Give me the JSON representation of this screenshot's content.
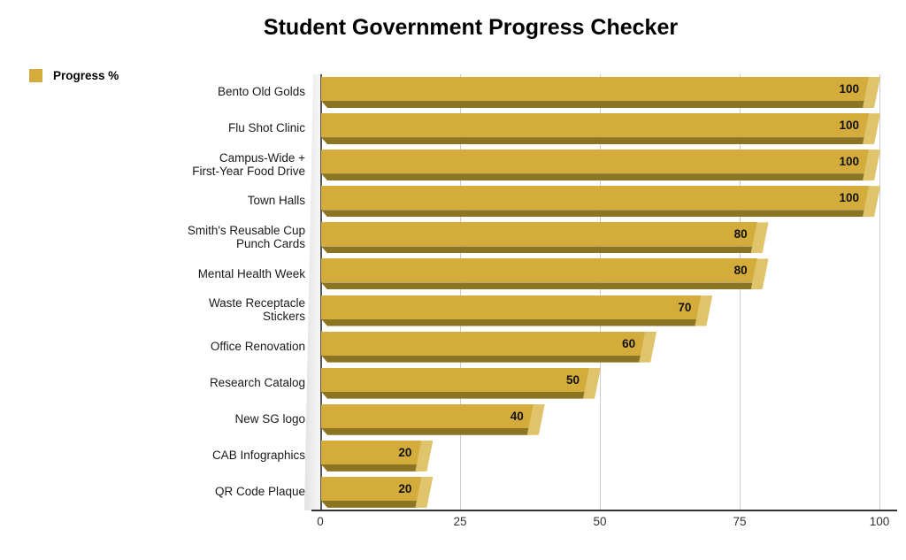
{
  "chart_data": {
    "type": "bar",
    "orientation": "horizontal",
    "title": "Student Government Progress Checker",
    "legend": "Progress %",
    "legend_position": "top-left",
    "categories": [
      "Bento Old Golds",
      "Flu Shot Clinic",
      "Campus-Wide +\nFirst-Year Food Drive",
      "Town Halls",
      "Smith's Reusable Cup\nPunch Cards",
      "Mental Health Week",
      "Waste Receptacle\nStickers",
      "Office Renovation",
      "Research Catalog",
      "New SG logo",
      "CAB Infographics",
      "QR Code Plaque"
    ],
    "values": [
      100,
      100,
      100,
      100,
      80,
      80,
      70,
      60,
      50,
      40,
      20,
      20
    ],
    "xlabel": "",
    "ylabel": "",
    "xlim": [
      0,
      100
    ],
    "x_ticks": [
      0,
      25,
      50,
      75,
      100
    ],
    "grid": true,
    "value_labels": true
  },
  "colors": {
    "bar_fill": "#D4AC3C",
    "bar_underside": "#8C7522",
    "bar_end_bevel": "#E0C46C",
    "gridline": "#CCCCCC",
    "axis_line": "#333333",
    "wall_gray": "#E2E2E2",
    "text": "#000000"
  }
}
